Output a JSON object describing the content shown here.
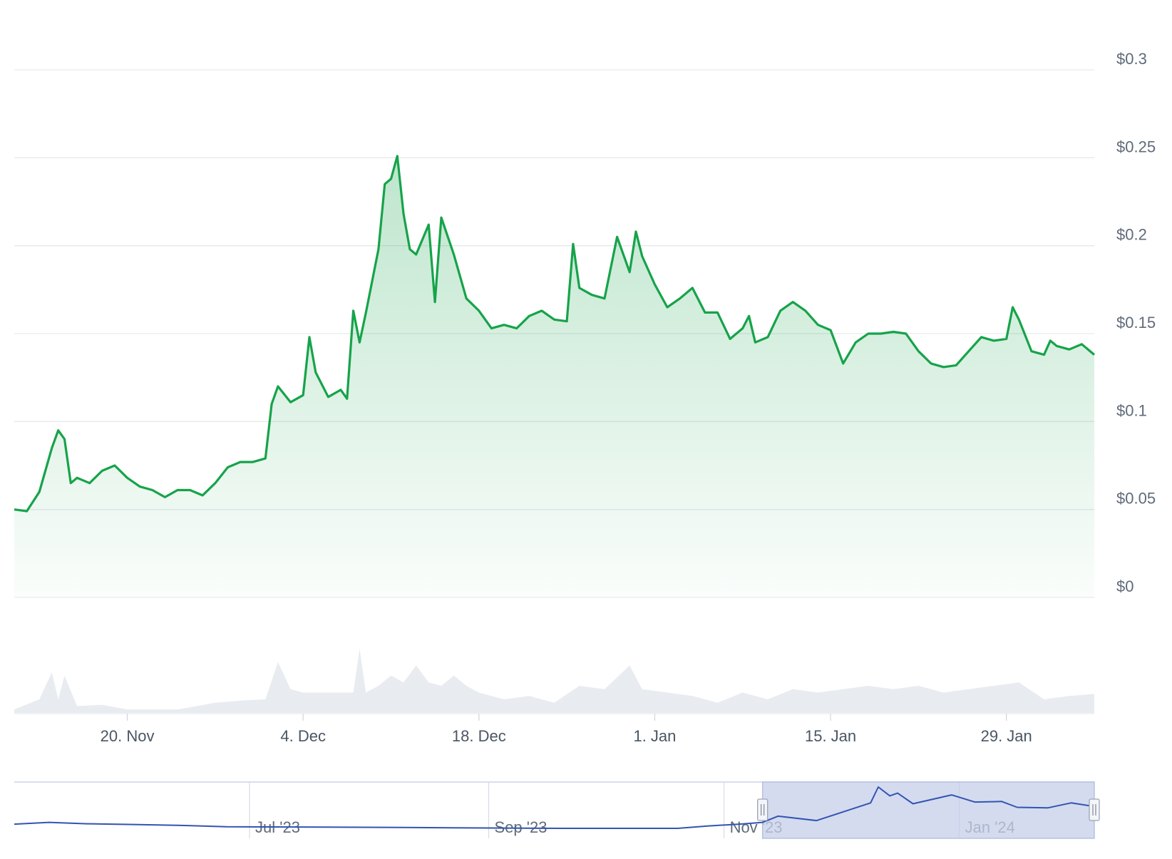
{
  "colors": {
    "price_line": "#16a34a",
    "price_fill": "#16a34a",
    "volume_fill": "#e8ecf1",
    "grid": "#e6e9ee",
    "navigator_line": "#3354b0",
    "navigator_selection": "#c6cfea",
    "navigator_border": "#b7c2df"
  },
  "chart_data": {
    "type": "area",
    "title": "",
    "xlabel": "",
    "ylabel": "",
    "ylim": [
      0,
      0.3
    ],
    "y_ticks": [
      "$0",
      "$0.05",
      "$0.1",
      "$0.15",
      "$0.2",
      "$0.25",
      "$0.3"
    ],
    "y_tick_values": [
      0,
      0.05,
      0.1,
      0.15,
      0.2,
      0.25,
      0.3
    ],
    "x_range_days": [
      "2023-11-11",
      "2024-02-05"
    ],
    "x_ticks": [
      "20. Nov",
      "4. Dec",
      "18. Dec",
      "1. Jan",
      "15. Jan",
      "29. Jan"
    ],
    "x_tick_dates": [
      "2023-11-20",
      "2023-12-04",
      "2023-12-18",
      "2024-01-01",
      "2024-01-15",
      "2024-01-29"
    ],
    "grid": true,
    "legend": "none",
    "series": [
      {
        "values": [
          [
            "2023-11-11",
            0.05
          ],
          [
            "2023-11-12",
            0.049
          ],
          [
            "2023-11-13",
            0.06
          ],
          [
            "2023-11-14",
            0.085
          ],
          [
            "2023-11-14T12",
            0.095
          ],
          [
            "2023-11-15",
            0.09
          ],
          [
            "2023-11-15T12",
            0.065
          ],
          [
            "2023-11-16",
            0.068
          ],
          [
            "2023-11-17",
            0.065
          ],
          [
            "2023-11-18",
            0.072
          ],
          [
            "2023-11-19",
            0.075
          ],
          [
            "2023-11-20",
            0.068
          ],
          [
            "2023-11-21",
            0.063
          ],
          [
            "2023-11-22",
            0.061
          ],
          [
            "2023-11-23",
            0.057
          ],
          [
            "2023-11-24",
            0.061
          ],
          [
            "2023-11-25",
            0.061
          ],
          [
            "2023-11-26",
            0.058
          ],
          [
            "2023-11-27",
            0.065
          ],
          [
            "2023-11-28",
            0.074
          ],
          [
            "2023-11-29",
            0.077
          ],
          [
            "2023-11-30",
            0.077
          ],
          [
            "2023-12-01",
            0.079
          ],
          [
            "2023-12-01T12",
            0.11
          ],
          [
            "2023-12-02",
            0.12
          ],
          [
            "2023-12-03",
            0.111
          ],
          [
            "2023-12-04",
            0.115
          ],
          [
            "2023-12-04T12",
            0.148
          ],
          [
            "2023-12-05",
            0.128
          ],
          [
            "2023-12-06",
            0.114
          ],
          [
            "2023-12-07",
            0.118
          ],
          [
            "2023-12-07T12",
            0.113
          ],
          [
            "2023-12-08",
            0.163
          ],
          [
            "2023-12-08T12",
            0.145
          ],
          [
            "2023-12-09",
            0.162
          ],
          [
            "2023-12-10",
            0.198
          ],
          [
            "2023-12-10T12",
            0.235
          ],
          [
            "2023-12-11",
            0.238
          ],
          [
            "2023-12-11T12",
            0.251
          ],
          [
            "2023-12-12",
            0.218
          ],
          [
            "2023-12-12T12",
            0.198
          ],
          [
            "2023-12-13",
            0.195
          ],
          [
            "2023-12-14",
            0.212
          ],
          [
            "2023-12-14T12",
            0.168
          ],
          [
            "2023-12-15",
            0.216
          ],
          [
            "2023-12-16",
            0.195
          ],
          [
            "2023-12-17",
            0.17
          ],
          [
            "2023-12-18",
            0.163
          ],
          [
            "2023-12-19",
            0.153
          ],
          [
            "2023-12-20",
            0.155
          ],
          [
            "2023-12-21",
            0.153
          ],
          [
            "2023-12-22",
            0.16
          ],
          [
            "2023-12-23",
            0.163
          ],
          [
            "2023-12-24",
            0.158
          ],
          [
            "2023-12-25",
            0.157
          ],
          [
            "2023-12-25T12",
            0.201
          ],
          [
            "2023-12-26",
            0.176
          ],
          [
            "2023-12-27",
            0.172
          ],
          [
            "2023-12-28",
            0.17
          ],
          [
            "2023-12-29",
            0.205
          ],
          [
            "2023-12-30",
            0.185
          ],
          [
            "2023-12-30T12",
            0.208
          ],
          [
            "2023-12-31",
            0.194
          ],
          [
            "2024-01-01",
            0.178
          ],
          [
            "2024-01-02",
            0.165
          ],
          [
            "2024-01-03",
            0.17
          ],
          [
            "2024-01-04",
            0.176
          ],
          [
            "2024-01-05",
            0.162
          ],
          [
            "2024-01-06",
            0.162
          ],
          [
            "2024-01-07",
            0.147
          ],
          [
            "2024-01-08",
            0.153
          ],
          [
            "2024-01-08T12",
            0.16
          ],
          [
            "2024-01-09",
            0.145
          ],
          [
            "2024-01-10",
            0.148
          ],
          [
            "2024-01-11",
            0.163
          ],
          [
            "2024-01-12",
            0.168
          ],
          [
            "2024-01-13",
            0.163
          ],
          [
            "2024-01-14",
            0.155
          ],
          [
            "2024-01-15",
            0.152
          ],
          [
            "2024-01-16",
            0.133
          ],
          [
            "2024-01-17",
            0.145
          ],
          [
            "2024-01-18",
            0.15
          ],
          [
            "2024-01-19",
            0.15
          ],
          [
            "2024-01-20",
            0.151
          ],
          [
            "2024-01-21",
            0.15
          ],
          [
            "2024-01-22",
            0.14
          ],
          [
            "2024-01-23",
            0.133
          ],
          [
            "2024-01-24",
            0.131
          ],
          [
            "2024-01-25",
            0.132
          ],
          [
            "2024-01-26",
            0.14
          ],
          [
            "2024-01-27",
            0.148
          ],
          [
            "2024-01-28",
            0.146
          ],
          [
            "2024-01-29",
            0.147
          ],
          [
            "2024-01-29T12",
            0.165
          ],
          [
            "2024-01-30",
            0.158
          ],
          [
            "2024-01-31",
            0.14
          ],
          [
            "2024-02-01",
            0.138
          ],
          [
            "2024-02-01T12",
            0.146
          ],
          [
            "2024-02-02",
            0.143
          ],
          [
            "2024-02-03",
            0.141
          ],
          [
            "2024-02-04",
            0.144
          ],
          [
            "2024-02-05",
            0.138
          ]
        ]
      }
    ],
    "volume": {
      "values": [
        [
          "2023-11-11",
          0.05
        ],
        [
          "2023-11-13",
          0.2
        ],
        [
          "2023-11-14",
          0.6
        ],
        [
          "2023-11-14T12",
          0.2
        ],
        [
          "2023-11-15",
          0.55
        ],
        [
          "2023-11-16",
          0.1
        ],
        [
          "2023-11-18",
          0.12
        ],
        [
          "2023-11-20",
          0.05
        ],
        [
          "2023-11-24",
          0.05
        ],
        [
          "2023-11-27",
          0.15
        ],
        [
          "2023-11-29",
          0.18
        ],
        [
          "2023-12-01",
          0.2
        ],
        [
          "2023-12-02",
          0.75
        ],
        [
          "2023-12-03",
          0.35
        ],
        [
          "2023-12-04",
          0.3
        ],
        [
          "2023-12-06",
          0.3
        ],
        [
          "2023-12-08",
          0.3
        ],
        [
          "2023-12-08T12",
          0.95
        ],
        [
          "2023-12-09",
          0.3
        ],
        [
          "2023-12-10",
          0.4
        ],
        [
          "2023-12-11",
          0.55
        ],
        [
          "2023-12-12",
          0.45
        ],
        [
          "2023-12-13",
          0.7
        ],
        [
          "2023-12-14",
          0.45
        ],
        [
          "2023-12-15",
          0.4
        ],
        [
          "2023-12-16",
          0.55
        ],
        [
          "2023-12-17",
          0.4
        ],
        [
          "2023-12-18",
          0.3
        ],
        [
          "2023-12-20",
          0.2
        ],
        [
          "2023-12-22",
          0.25
        ],
        [
          "2023-12-24",
          0.15
        ],
        [
          "2023-12-26",
          0.4
        ],
        [
          "2023-12-28",
          0.35
        ],
        [
          "2023-12-30",
          0.7
        ],
        [
          "2023-12-31",
          0.35
        ],
        [
          "2024-01-02",
          0.3
        ],
        [
          "2024-01-04",
          0.25
        ],
        [
          "2024-01-06",
          0.15
        ],
        [
          "2024-01-08",
          0.3
        ],
        [
          "2024-01-10",
          0.2
        ],
        [
          "2024-01-12",
          0.35
        ],
        [
          "2024-01-14",
          0.3
        ],
        [
          "2024-01-16",
          0.35
        ],
        [
          "2024-01-18",
          0.4
        ],
        [
          "2024-01-20",
          0.35
        ],
        [
          "2024-01-22",
          0.4
        ],
        [
          "2024-01-24",
          0.3
        ],
        [
          "2024-01-26",
          0.35
        ],
        [
          "2024-01-28",
          0.4
        ],
        [
          "2024-01-30",
          0.45
        ],
        [
          "2024-02-01",
          0.2
        ],
        [
          "2024-02-03",
          0.25
        ],
        [
          "2024-02-05",
          0.28
        ]
      ]
    },
    "navigator": {
      "x_ticks": [
        "Jul '23",
        "Sep '23",
        "Nov '23",
        "Jan '24"
      ],
      "x_tick_dates": [
        "2023-07-01",
        "2023-09-01",
        "2023-11-01",
        "2024-01-01"
      ],
      "x_range_days": [
        "2023-05-01",
        "2024-02-05"
      ],
      "selected_range": [
        "2023-11-11",
        "2024-02-05"
      ],
      "values": [
        [
          "2023-05-01",
          0.04
        ],
        [
          "2023-05-10",
          0.05
        ],
        [
          "2023-05-20",
          0.042
        ],
        [
          "2023-06-01",
          0.038
        ],
        [
          "2023-06-15",
          0.032
        ],
        [
          "2023-06-25",
          0.025
        ],
        [
          "2023-07-05",
          0.024
        ],
        [
          "2023-07-20",
          0.023
        ],
        [
          "2023-08-10",
          0.021
        ],
        [
          "2023-09-01",
          0.018
        ],
        [
          "2023-09-20",
          0.016
        ],
        [
          "2023-10-20",
          0.016
        ],
        [
          "2023-10-28",
          0.03
        ],
        [
          "2023-11-05",
          0.04
        ],
        [
          "2023-11-11",
          0.05
        ],
        [
          "2023-11-15",
          0.085
        ],
        [
          "2023-11-25",
          0.06
        ],
        [
          "2023-12-02",
          0.11
        ],
        [
          "2023-12-09",
          0.16
        ],
        [
          "2023-12-11",
          0.25
        ],
        [
          "2023-12-14",
          0.2
        ],
        [
          "2023-12-16",
          0.215
        ],
        [
          "2023-12-20",
          0.155
        ],
        [
          "2023-12-30",
          0.205
        ],
        [
          "2024-01-05",
          0.165
        ],
        [
          "2024-01-12",
          0.168
        ],
        [
          "2024-01-16",
          0.135
        ],
        [
          "2024-01-24",
          0.132
        ],
        [
          "2024-01-30",
          0.16
        ],
        [
          "2024-02-05",
          0.14
        ]
      ]
    }
  }
}
